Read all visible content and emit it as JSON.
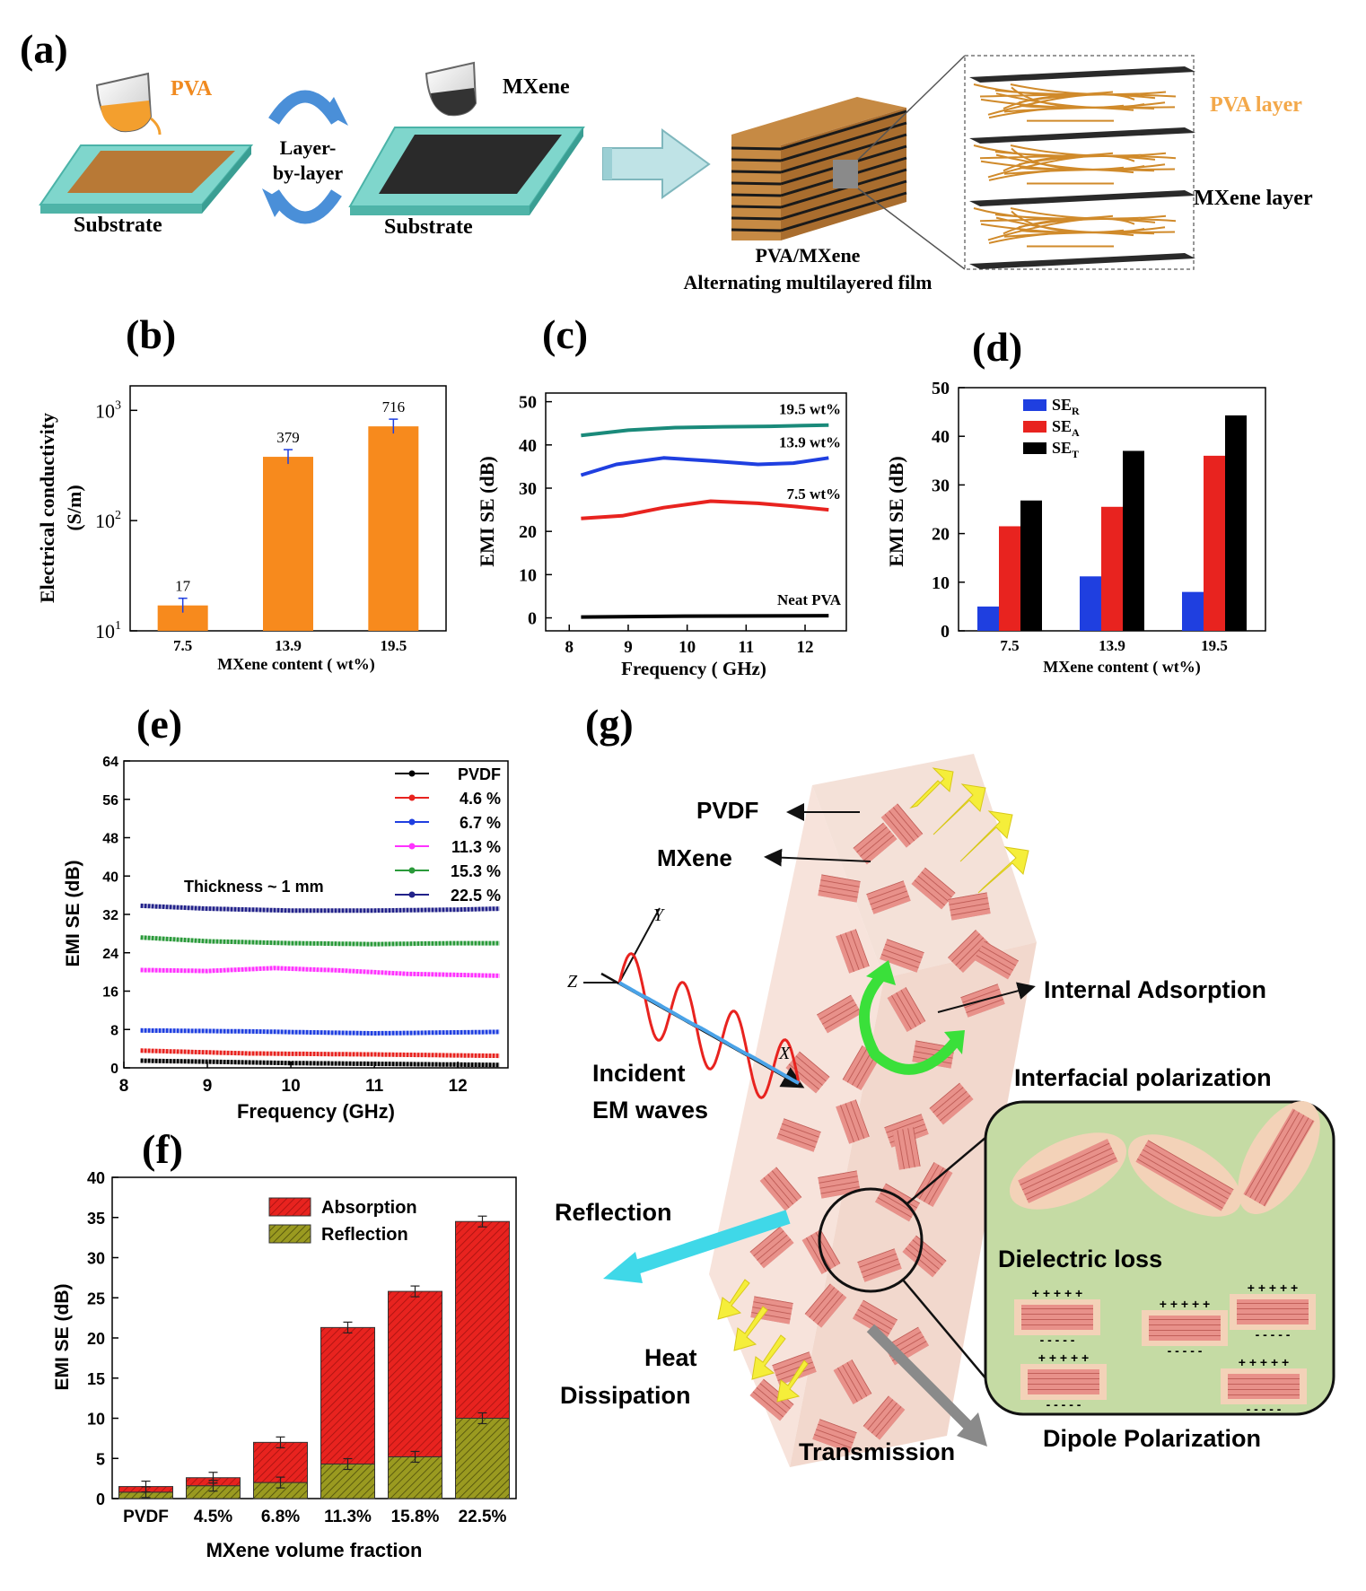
{
  "panel_labels": {
    "a": "(a)",
    "b": "(b)",
    "c": "(c)",
    "d": "(d)",
    "e": "(e)",
    "f": "(f)",
    "g": "(g)"
  },
  "schematic_a": {
    "pva_label": "PVA",
    "mxene_label": "MXene",
    "layer_by_layer_1": "Layer-",
    "layer_by_layer_2": "by-layer",
    "substrate_1": "Substrate",
    "substrate_2": "Substrate",
    "film_label_1": "PVA/MXene",
    "film_label_2": "Alternating multilayered film",
    "pva_layer": "PVA layer",
    "mxene_layer": "MXene layer"
  },
  "schematic_g": {
    "pvdf": "PVDF",
    "mxene": "MXene",
    "internal_adsorption": "Internal Adsorption",
    "interfacial_polarization": "Interfacial polarization",
    "incident_1": "Incident",
    "incident_2": "EM waves",
    "reflection": "Reflection",
    "dielectric_loss": "Dielectric loss",
    "heat_1": "Heat",
    "heat_2": "Dissipation",
    "transmission": "Transmission",
    "dipole": "Dipole Polarization",
    "axis_x": "X",
    "axis_y": "Y",
    "axis_z": "Z"
  },
  "colors": {
    "orange": "#f78a1d",
    "red": "#e8231f",
    "blue": "#1f3fe0",
    "black": "#000000",
    "teal": "#1a8a7a",
    "magenta": "#ff33ff",
    "green": "#2a9a3a",
    "navy": "#22228a",
    "olive": "#8a8a1a"
  },
  "chart_data": [
    {
      "id": "b",
      "type": "bar",
      "title": "",
      "xlabel": "MXene content ( wt%)",
      "ylabel_1": "Electrical conductivity",
      "ylabel_2": "(S/m)",
      "categories": [
        "7.5",
        "13.9",
        "19.5"
      ],
      "values": [
        17,
        379,
        716
      ],
      "value_labels": [
        "17",
        "379",
        "716"
      ],
      "yscale": "log",
      "ylim": [
        10,
        1000
      ],
      "yticks": [
        {
          "v": 10,
          "base": "10",
          "exp": "1"
        },
        {
          "v": 100,
          "base": "10",
          "exp": "2"
        },
        {
          "v": 1000,
          "base": "10",
          "exp": "3"
        }
      ]
    },
    {
      "id": "c",
      "type": "line",
      "xlabel": "Frequency ( GHz)",
      "ylabel": "EMI SE (dB)",
      "xlim": [
        7.6,
        12.7
      ],
      "ylim": [
        -3,
        52
      ],
      "xticks": [
        "8",
        "9",
        "10",
        "11",
        "12"
      ],
      "yticks": [
        "0",
        "10",
        "20",
        "30",
        "40",
        "50"
      ],
      "series": [
        {
          "name": "19.5 wt%",
          "x": [
            8.2,
            9.0,
            9.8,
            10.6,
            11.4,
            12.4
          ],
          "y": [
            42.2,
            43.4,
            44.0,
            44.2,
            44.3,
            44.6
          ]
        },
        {
          "name": "13.9 wt%",
          "x": [
            8.2,
            8.8,
            9.6,
            10.4,
            11.2,
            11.8,
            12.4
          ],
          "y": [
            33.0,
            35.5,
            37.0,
            36.3,
            35.5,
            35.8,
            37.0
          ]
        },
        {
          "name": "7.5 wt%",
          "x": [
            8.2,
            8.9,
            9.6,
            10.4,
            11.2,
            11.8,
            12.4
          ],
          "y": [
            23.0,
            23.6,
            25.5,
            27.0,
            26.5,
            25.8,
            25.0
          ]
        },
        {
          "name": "Neat PVA",
          "x": [
            8.2,
            10.0,
            12.4
          ],
          "y": [
            0.2,
            0.4,
            0.5
          ]
        }
      ]
    },
    {
      "id": "d",
      "type": "bar",
      "xlabel": "MXene content ( wt%)",
      "ylabel": "EMI SE (dB)",
      "categories": [
        "7.5",
        "13.9",
        "19.5"
      ],
      "ylim": [
        0,
        50
      ],
      "yticks": [
        "0",
        "10",
        "20",
        "30",
        "40",
        "50"
      ],
      "series": [
        {
          "name": "SE",
          "sub": "R",
          "values": [
            5.0,
            11.2,
            8.0
          ]
        },
        {
          "name": "SE",
          "sub": "A",
          "values": [
            21.5,
            25.5,
            36.0
          ]
        },
        {
          "name": "SE",
          "sub": "T",
          "values": [
            26.8,
            37.0,
            44.3
          ]
        }
      ]
    },
    {
      "id": "e",
      "type": "line",
      "xlabel": "Frequency (GHz)",
      "ylabel": "EMI SE (dB)",
      "annotation": "Thickness ~ 1 mm",
      "xlim": [
        8,
        12.6
      ],
      "ylim": [
        0,
        64
      ],
      "xticks": [
        "8",
        "9",
        "10",
        "11",
        "12"
      ],
      "yticks": [
        "0",
        "8",
        "16",
        "24",
        "32",
        "40",
        "48",
        "56",
        "64"
      ],
      "series": [
        {
          "name": "PVDF",
          "label": "PVDF",
          "x": [
            8.2,
            10.0,
            12.5
          ],
          "y": [
            1.5,
            1.0,
            0.6
          ]
        },
        {
          "name": "4.6 %",
          "label": "4.6  %",
          "x": [
            8.2,
            9.5,
            11.0,
            12.5
          ],
          "y": [
            3.6,
            3.0,
            2.8,
            2.5
          ]
        },
        {
          "name": "6.7 %",
          "label": "6.7  %",
          "x": [
            8.2,
            9.5,
            11.0,
            12.5
          ],
          "y": [
            7.8,
            7.6,
            7.2,
            7.5
          ]
        },
        {
          "name": "11.3 %",
          "label": "11.3 %",
          "x": [
            8.2,
            9.0,
            9.8,
            10.6,
            11.4,
            12.5
          ],
          "y": [
            20.4,
            20.2,
            20.8,
            20.3,
            19.6,
            19.2
          ]
        },
        {
          "name": "15.3 %",
          "label": "15.3 %",
          "x": [
            8.2,
            9.0,
            10.0,
            11.0,
            12.0,
            12.5
          ],
          "y": [
            27.2,
            26.4,
            26.0,
            25.8,
            26.0,
            26.0
          ]
        },
        {
          "name": "22.5 %",
          "label": "22.5 %",
          "x": [
            8.2,
            9.0,
            10.0,
            11.0,
            12.0,
            12.5
          ],
          "y": [
            33.8,
            33.2,
            32.8,
            32.8,
            33.0,
            33.2
          ]
        }
      ]
    },
    {
      "id": "f",
      "type": "bar",
      "stacked": true,
      "xlabel": "MXene volume fraction",
      "ylabel": "EMI SE (dB)",
      "categories": [
        "PVDF",
        "4.5%",
        "6.8%",
        "11.3%",
        "15.8%",
        "22.5%"
      ],
      "ylim": [
        0,
        40
      ],
      "yticks": [
        "0",
        "5",
        "10",
        "15",
        "20",
        "25",
        "30",
        "35",
        "40"
      ],
      "series": [
        {
          "name": "Reflection",
          "values": [
            0.8,
            1.6,
            2.0,
            4.3,
            5.2,
            10.0
          ]
        },
        {
          "name": "Absorption",
          "values": [
            0.7,
            1.0,
            5.0,
            17.0,
            20.6,
            24.5
          ]
        }
      ],
      "totals": [
        1.5,
        2.6,
        7.0,
        21.3,
        25.8,
        34.5
      ]
    }
  ]
}
